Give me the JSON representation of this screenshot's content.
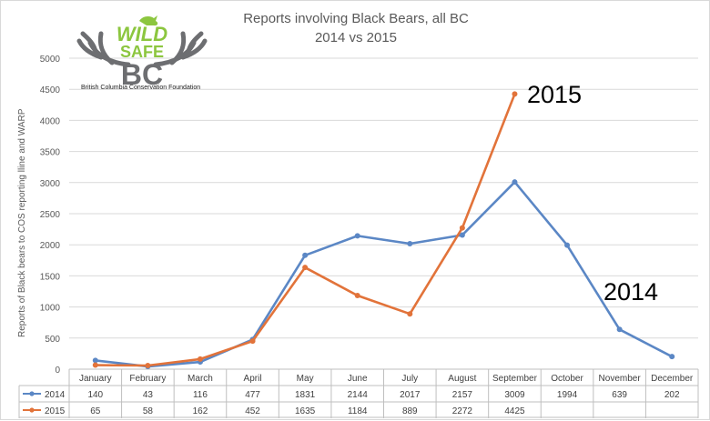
{
  "title": {
    "line1": "Reports involving Black Bears, all BC",
    "line2": "2014 vs 2015"
  },
  "logo": {
    "wordmark_top": "WILD",
    "wordmark_mid": "SAFE",
    "wordmark_bottom": "BC",
    "caption": "British Columbia Conservation Foundation",
    "colors": {
      "green": "#8cc63f",
      "gray": "#6d6e71"
    }
  },
  "annotations": {
    "label_2015": "2015",
    "label_2014": "2014"
  },
  "chart_data": {
    "type": "line",
    "categories": [
      "January",
      "February",
      "March",
      "April",
      "May",
      "June",
      "July",
      "August",
      "September",
      "October",
      "November",
      "December"
    ],
    "series": [
      {
        "name": "2014",
        "color": "#5b87c5",
        "values": [
          140,
          43,
          116,
          477,
          1831,
          2144,
          2017,
          2157,
          3009,
          1994,
          639,
          202
        ]
      },
      {
        "name": "2015",
        "color": "#e2733a",
        "values": [
          65,
          58,
          162,
          452,
          1635,
          1184,
          889,
          2272,
          4425,
          null,
          null,
          null
        ]
      }
    ],
    "ylabel": "Reports  of Black bears to COS reporting lline and WARP",
    "ylim": [
      0,
      5000
    ],
    "yticks": [
      0,
      500,
      1000,
      1500,
      2000,
      2500,
      3000,
      3500,
      4000,
      4500,
      5000
    ],
    "grid": true,
    "data_table": true
  }
}
